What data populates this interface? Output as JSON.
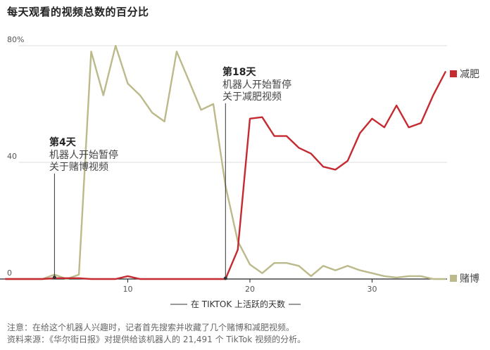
{
  "title": "每天观看的视频总数的百分比",
  "chart_data": {
    "type": "line",
    "xlabel": "在 TIKTOK 上活跃的天数",
    "ylabel": "",
    "ylim": [
      0,
      80
    ],
    "xlim": [
      0,
      37
    ],
    "y_ticks": [
      {
        "value": 0,
        "label": "0"
      },
      {
        "value": 40,
        "label": "40"
      },
      {
        "value": 80,
        "label": "80%"
      }
    ],
    "x_ticks": [
      {
        "value": 10,
        "label": "10"
      },
      {
        "value": 20,
        "label": "20"
      },
      {
        "value": 30,
        "label": "30"
      }
    ],
    "grid": "horizontal",
    "series": [
      {
        "name": "减肥",
        "color": "#c62a31",
        "x": [
          0,
          1,
          2,
          3,
          4,
          5,
          6,
          7,
          8,
          9,
          10,
          11,
          12,
          13,
          14,
          15,
          16,
          17,
          18,
          19,
          20,
          21,
          22,
          23,
          24,
          25,
          26,
          27,
          28,
          29,
          30,
          31,
          32,
          33,
          34,
          35,
          36
        ],
        "values": [
          0,
          0,
          0,
          0,
          0.3,
          0.3,
          0.3,
          0,
          0,
          0,
          1,
          0,
          0,
          0,
          0,
          0,
          0,
          0,
          0,
          10,
          55,
          55.5,
          49,
          49,
          45,
          43,
          38.5,
          37.5,
          40.5,
          50,
          55,
          52,
          59.5,
          52,
          53.5,
          63,
          71
        ]
      },
      {
        "name": "赌博",
        "color": "#bcb98a",
        "x": [
          0,
          1,
          2,
          3,
          4,
          5,
          6,
          7,
          8,
          9,
          10,
          11,
          12,
          13,
          14,
          15,
          16,
          17,
          18,
          19,
          20,
          21,
          22,
          23,
          24,
          25,
          26,
          27,
          28,
          29,
          30,
          31,
          32,
          33,
          34,
          35,
          36
        ],
        "values": [
          0,
          0,
          0,
          0,
          1.5,
          0,
          1.5,
          78,
          63,
          80,
          67,
          63,
          57,
          54,
          78,
          68,
          58,
          60,
          32,
          13,
          5,
          2,
          5.5,
          5.5,
          4.5,
          1,
          4.5,
          3,
          4.5,
          3,
          2,
          1,
          0.5,
          1,
          1,
          0,
          0
        ]
      }
    ],
    "annotations": [
      {
        "x": 4,
        "y": 0.3,
        "day": "第4天",
        "lines": [
          "机器人开始暂停",
          "关于赌博视频"
        ]
      },
      {
        "x": 18,
        "y": 0,
        "day": "第18天",
        "lines": [
          "机器人开始暂停",
          "关于减肥视频"
        ]
      }
    ]
  },
  "notes": {
    "note": "注意：在给这个机器人兴趣时，记者首先搜索并收藏了几个赌博和减肥视频。",
    "source": "资料来源：《华尔街日报》对提供给该机器人的 21,491 个 TikTok 视频的分析。"
  }
}
